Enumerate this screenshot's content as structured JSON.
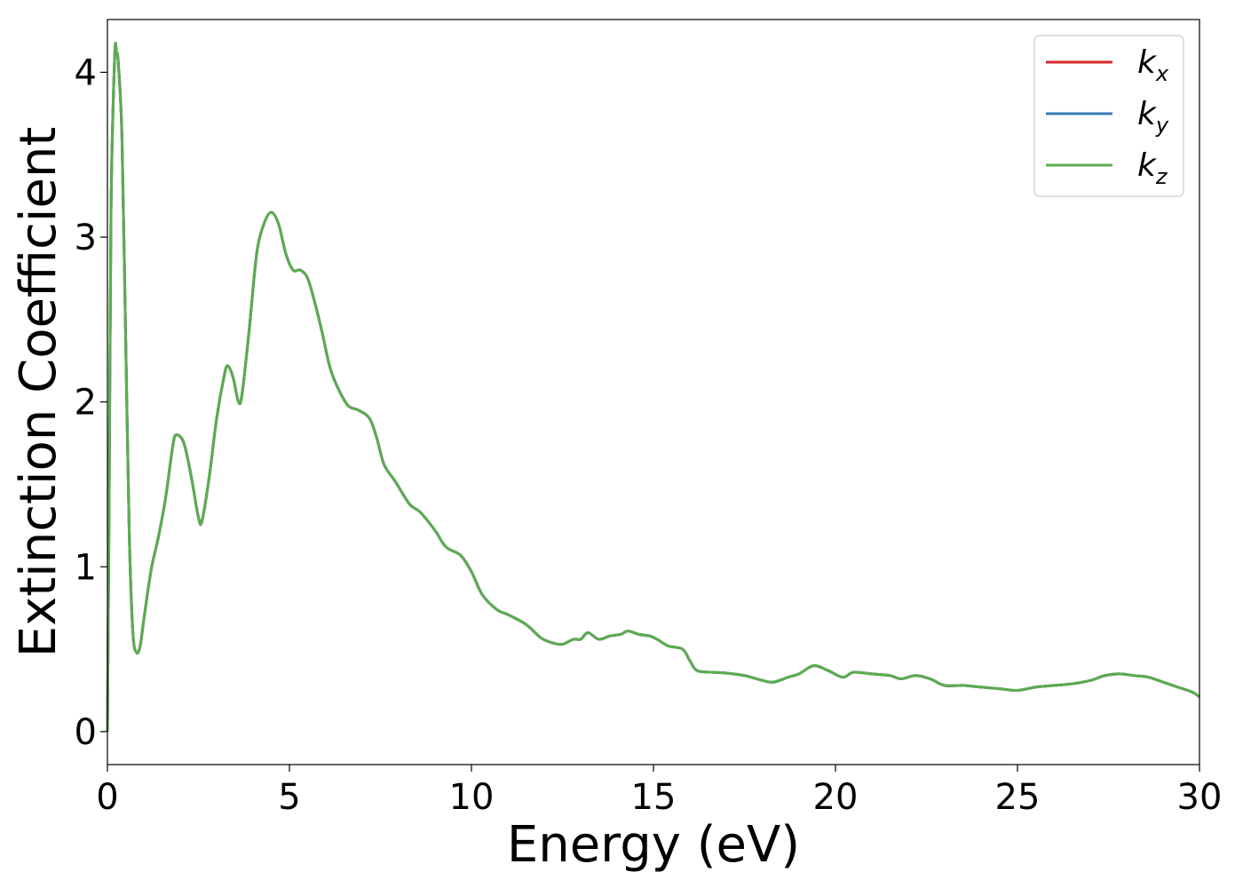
{
  "chart_data": {
    "type": "line",
    "xlabel": "Energy (eV)",
    "ylabel": "Extinction Coefficient",
    "xlim": [
      0,
      30
    ],
    "ylim": [
      -0.2,
      4.32
    ],
    "xticks": [
      0,
      5,
      10,
      15,
      20,
      25,
      30
    ],
    "yticks": [
      0,
      1,
      2,
      3,
      4
    ],
    "grid": false,
    "legend_position": "top-right",
    "series": [
      {
        "name": "k_x",
        "legend_base": "k",
        "legend_sub": "x",
        "color": "#d62728",
        "points": [
          [
            0,
            0
          ],
          [
            0.05,
            1.5
          ],
          [
            0.1,
            3.2
          ],
          [
            0.2,
            4.1
          ],
          [
            0.25,
            4.12
          ],
          [
            0.3,
            4.05
          ],
          [
            0.4,
            3.6
          ],
          [
            0.5,
            2.4
          ],
          [
            0.6,
            1.2
          ],
          [
            0.7,
            0.6
          ],
          [
            0.8,
            0.48
          ],
          [
            0.9,
            0.52
          ],
          [
            1.0,
            0.68
          ],
          [
            1.2,
            0.98
          ],
          [
            1.4,
            1.18
          ],
          [
            1.6,
            1.42
          ],
          [
            1.8,
            1.74
          ],
          [
            1.9,
            1.8
          ],
          [
            2.1,
            1.75
          ],
          [
            2.3,
            1.55
          ],
          [
            2.5,
            1.3
          ],
          [
            2.6,
            1.28
          ],
          [
            2.8,
            1.55
          ],
          [
            3.0,
            1.9
          ],
          [
            3.2,
            2.15
          ],
          [
            3.3,
            2.22
          ],
          [
            3.45,
            2.15
          ],
          [
            3.6,
            2.0
          ],
          [
            3.7,
            2.05
          ],
          [
            3.9,
            2.45
          ],
          [
            4.1,
            2.9
          ],
          [
            4.3,
            3.08
          ],
          [
            4.5,
            3.15
          ],
          [
            4.7,
            3.08
          ],
          [
            4.9,
            2.9
          ],
          [
            5.1,
            2.8
          ],
          [
            5.3,
            2.8
          ],
          [
            5.5,
            2.75
          ],
          [
            5.7,
            2.6
          ],
          [
            5.9,
            2.42
          ],
          [
            6.1,
            2.22
          ],
          [
            6.3,
            2.1
          ],
          [
            6.6,
            1.98
          ],
          [
            6.9,
            1.95
          ],
          [
            7.2,
            1.9
          ],
          [
            7.4,
            1.78
          ],
          [
            7.6,
            1.62
          ],
          [
            7.9,
            1.52
          ],
          [
            8.3,
            1.38
          ],
          [
            8.6,
            1.33
          ],
          [
            9.0,
            1.22
          ],
          [
            9.3,
            1.12
          ],
          [
            9.7,
            1.07
          ],
          [
            10.0,
            0.97
          ],
          [
            10.3,
            0.83
          ],
          [
            10.7,
            0.74
          ],
          [
            11.0,
            0.71
          ],
          [
            11.5,
            0.65
          ],
          [
            11.9,
            0.57
          ],
          [
            12.2,
            0.54
          ],
          [
            12.5,
            0.53
          ],
          [
            12.8,
            0.56
          ],
          [
            13.0,
            0.56
          ],
          [
            13.2,
            0.6
          ],
          [
            13.5,
            0.56
          ],
          [
            13.8,
            0.58
          ],
          [
            14.1,
            0.59
          ],
          [
            14.3,
            0.61
          ],
          [
            14.6,
            0.59
          ],
          [
            14.9,
            0.58
          ],
          [
            15.1,
            0.56
          ],
          [
            15.4,
            0.52
          ],
          [
            15.8,
            0.5
          ],
          [
            16.0,
            0.43
          ],
          [
            16.2,
            0.37
          ],
          [
            16.6,
            0.36
          ],
          [
            17.0,
            0.355
          ],
          [
            17.5,
            0.34
          ],
          [
            18.0,
            0.31
          ],
          [
            18.3,
            0.3
          ],
          [
            18.7,
            0.33
          ],
          [
            19.0,
            0.35
          ],
          [
            19.4,
            0.4
          ],
          [
            19.8,
            0.37
          ],
          [
            20.2,
            0.33
          ],
          [
            20.5,
            0.36
          ],
          [
            21.0,
            0.35
          ],
          [
            21.5,
            0.34
          ],
          [
            21.8,
            0.32
          ],
          [
            22.2,
            0.34
          ],
          [
            22.6,
            0.32
          ],
          [
            23.0,
            0.28
          ],
          [
            23.5,
            0.28
          ],
          [
            24.0,
            0.27
          ],
          [
            24.5,
            0.26
          ],
          [
            25.0,
            0.25
          ],
          [
            25.5,
            0.27
          ],
          [
            26.0,
            0.28
          ],
          [
            26.5,
            0.29
          ],
          [
            27.0,
            0.31
          ],
          [
            27.4,
            0.34
          ],
          [
            27.8,
            0.35
          ],
          [
            28.2,
            0.34
          ],
          [
            28.6,
            0.33
          ],
          [
            29.0,
            0.3
          ],
          [
            29.4,
            0.27
          ],
          [
            29.8,
            0.24
          ],
          [
            30.0,
            0.21
          ]
        ]
      },
      {
        "name": "k_y",
        "legend_base": "k",
        "legend_sub": "y",
        "color": "#3a78b5",
        "same_as": "k_x"
      },
      {
        "name": "k_z",
        "legend_base": "k",
        "legend_sub": "z",
        "color": "#5aad4e",
        "same_as": "k_x"
      }
    ]
  }
}
